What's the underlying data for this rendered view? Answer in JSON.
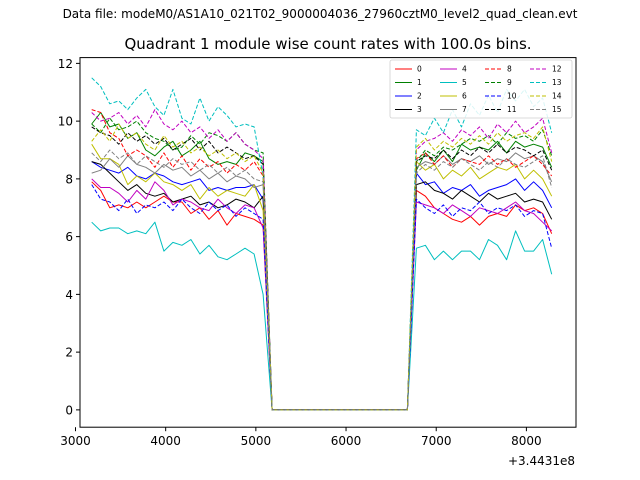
{
  "header": {
    "file_label": "Data file: modeM0/AS1A10_021T02_9000004036_27960cztM0_level2_quad_clean.evt"
  },
  "chart_data": {
    "type": "line",
    "title": "Quadrant 1 module wise count rates with 100.0s bins.",
    "xlabel": "",
    "ylabel": "",
    "x_offset_label": "+3.4431e8",
    "xlim": [
      3050,
      8550
    ],
    "ylim": [
      -0.6,
      12.2
    ],
    "xticks": [
      3000,
      4000,
      5000,
      6000,
      7000,
      8000
    ],
    "yticks": [
      0,
      2,
      4,
      6,
      8,
      10,
      12
    ],
    "grid": false,
    "legend_position": "upper-right",
    "x": [
      3180,
      3280,
      3380,
      3480,
      3580,
      3680,
      3780,
      3880,
      3980,
      4080,
      4180,
      4280,
      4380,
      4480,
      4580,
      4680,
      4780,
      4880,
      4980,
      5080,
      5180,
      5280,
      5380,
      5480,
      5580,
      5680,
      5780,
      5880,
      5980,
      6080,
      6180,
      6280,
      6380,
      6480,
      6580,
      6680,
      6780,
      6880,
      6980,
      7080,
      7180,
      7280,
      7380,
      7480,
      7580,
      7680,
      7780,
      7880,
      7980,
      8080,
      8180,
      8280
    ],
    "series": [
      {
        "name": "0",
        "color": "#ff0000",
        "dash": false,
        "values": [
          7.9,
          7.6,
          7.0,
          7.1,
          7.0,
          7.2,
          7.0,
          7.2,
          7.4,
          7.2,
          7.2,
          6.8,
          7.0,
          6.6,
          6.9,
          6.4,
          6.8,
          6.7,
          6.6,
          6.4,
          0.0,
          0.0,
          0.0,
          0.0,
          0.0,
          0.0,
          0.0,
          0.0,
          0.0,
          0.0,
          0.0,
          0.0,
          0.0,
          0.0,
          0.0,
          0.0,
          7.6,
          7.4,
          7.0,
          6.8,
          6.6,
          6.5,
          6.7,
          6.4,
          6.7,
          6.8,
          6.7,
          7.1,
          6.9,
          7.0,
          6.8,
          6.1
        ]
      },
      {
        "name": "1",
        "color": "#008000",
        "dash": false,
        "values": [
          9.9,
          10.3,
          9.8,
          9.9,
          9.4,
          9.6,
          9.0,
          8.8,
          9.1,
          9.3,
          8.8,
          9.0,
          9.3,
          8.7,
          8.5,
          8.6,
          8.5,
          8.9,
          8.8,
          8.6,
          0.0,
          0.0,
          0.0,
          0.0,
          0.0,
          0.0,
          0.0,
          0.0,
          0.0,
          0.0,
          0.0,
          0.0,
          0.0,
          0.0,
          0.0,
          0.0,
          8.3,
          8.9,
          8.6,
          9.0,
          8.6,
          9.2,
          9.0,
          9.1,
          9.0,
          9.3,
          8.9,
          9.3,
          9.1,
          9.2,
          9.1,
          8.4
        ]
      },
      {
        "name": "2",
        "color": "#0000ff",
        "dash": false,
        "values": [
          8.6,
          8.4,
          8.3,
          8.2,
          8.4,
          8.1,
          8.0,
          8.2,
          8.1,
          7.9,
          7.8,
          7.9,
          8.0,
          7.6,
          7.7,
          7.6,
          7.7,
          7.7,
          7.8,
          7.3,
          0.0,
          0.0,
          0.0,
          0.0,
          0.0,
          0.0,
          0.0,
          0.0,
          0.0,
          0.0,
          0.0,
          0.0,
          0.0,
          0.0,
          0.0,
          0.0,
          8.2,
          7.8,
          7.9,
          7.5,
          7.7,
          7.6,
          7.8,
          7.4,
          7.6,
          7.7,
          7.8,
          8.0,
          7.6,
          7.9,
          7.6,
          7.0
        ]
      },
      {
        "name": "3",
        "color": "#000000",
        "dash": false,
        "values": [
          8.6,
          8.5,
          8.2,
          7.9,
          7.6,
          7.8,
          7.5,
          7.4,
          7.5,
          7.2,
          7.3,
          7.4,
          7.1,
          7.2,
          7.0,
          7.1,
          7.3,
          7.2,
          7.0,
          7.4,
          0.0,
          0.0,
          0.0,
          0.0,
          0.0,
          0.0,
          0.0,
          0.0,
          0.0,
          0.0,
          0.0,
          0.0,
          0.0,
          0.0,
          0.0,
          0.0,
          7.8,
          7.9,
          7.6,
          7.5,
          7.3,
          7.6,
          7.4,
          7.2,
          7.5,
          7.3,
          7.4,
          7.5,
          7.2,
          7.3,
          7.2,
          6.6
        ]
      },
      {
        "name": "4",
        "color": "#c000c0",
        "dash": false,
        "values": [
          8.0,
          7.7,
          7.7,
          7.5,
          7.2,
          7.6,
          7.3,
          7.9,
          7.6,
          7.1,
          7.3,
          7.2,
          7.0,
          6.9,
          7.3,
          7.0,
          6.8,
          7.1,
          7.0,
          6.3,
          0.0,
          0.0,
          0.0,
          0.0,
          0.0,
          0.0,
          0.0,
          0.0,
          0.0,
          0.0,
          0.0,
          0.0,
          0.0,
          0.0,
          0.0,
          0.0,
          7.2,
          7.1,
          7.0,
          6.8,
          7.1,
          6.9,
          6.7,
          7.0,
          6.9,
          6.8,
          7.0,
          7.2,
          6.9,
          6.8,
          6.5,
          6.2
        ]
      },
      {
        "name": "5",
        "color": "#00bfbf",
        "dash": false,
        "values": [
          6.5,
          6.2,
          6.3,
          6.3,
          6.1,
          6.2,
          6.1,
          6.5,
          5.5,
          5.8,
          5.7,
          5.9,
          5.4,
          5.7,
          5.3,
          5.2,
          5.4,
          5.6,
          5.4,
          4.0,
          0.0,
          0.0,
          0.0,
          0.0,
          0.0,
          0.0,
          0.0,
          0.0,
          0.0,
          0.0,
          0.0,
          0.0,
          0.0,
          0.0,
          0.0,
          0.0,
          5.6,
          5.7,
          5.2,
          5.5,
          5.2,
          5.5,
          5.5,
          5.2,
          5.9,
          5.7,
          5.2,
          6.2,
          5.5,
          5.5,
          5.9,
          4.7
        ]
      },
      {
        "name": "6",
        "color": "#bfbf00",
        "dash": false,
        "values": [
          9.2,
          8.7,
          8.7,
          8.5,
          7.8,
          8.1,
          7.9,
          8.2,
          7.9,
          7.8,
          7.6,
          7.8,
          7.3,
          7.7,
          7.4,
          7.6,
          7.5,
          7.4,
          7.8,
          6.9,
          0.0,
          0.0,
          0.0,
          0.0,
          0.0,
          0.0,
          0.0,
          0.0,
          0.0,
          0.0,
          0.0,
          0.0,
          0.0,
          0.0,
          0.0,
          0.0,
          8.6,
          8.3,
          8.5,
          8.0,
          8.3,
          8.1,
          8.4,
          8.0,
          8.2,
          8.4,
          8.3,
          8.5,
          8.0,
          8.3,
          8.0,
          7.4
        ]
      },
      {
        "name": "7",
        "color": "#808080",
        "dash": false,
        "values": [
          8.2,
          8.3,
          8.7,
          8.4,
          8.8,
          8.5,
          8.4,
          8.2,
          8.5,
          8.3,
          8.4,
          8.1,
          8.3,
          8.0,
          8.2,
          7.9,
          8.1,
          8.0,
          7.7,
          7.8,
          0.0,
          0.0,
          0.0,
          0.0,
          0.0,
          0.0,
          0.0,
          0.0,
          0.0,
          0.0,
          0.0,
          0.0,
          0.0,
          0.0,
          0.0,
          0.0,
          8.4,
          8.6,
          8.5,
          8.8,
          8.5,
          8.7,
          8.6,
          8.8,
          8.5,
          8.7,
          8.6,
          8.9,
          8.7,
          8.8,
          8.6,
          7.9
        ]
      },
      {
        "name": "8",
        "color": "#ff0000",
        "dash": true,
        "values": [
          10.4,
          10.3,
          9.6,
          9.4,
          8.8,
          9.0,
          8.8,
          8.4,
          8.9,
          8.4,
          8.8,
          8.3,
          8.7,
          8.4,
          8.6,
          8.2,
          8.5,
          8.3,
          8.6,
          8.1,
          0.0,
          0.0,
          0.0,
          0.0,
          0.0,
          0.0,
          0.0,
          0.0,
          0.0,
          0.0,
          0.0,
          0.0,
          0.0,
          0.0,
          0.0,
          0.0,
          8.7,
          8.9,
          8.5,
          8.8,
          8.4,
          8.7,
          8.6,
          8.5,
          8.8,
          8.5,
          8.7,
          8.4,
          8.6,
          8.8,
          8.5,
          8.1
        ]
      },
      {
        "name": "9",
        "color": "#008000",
        "dash": true,
        "values": [
          9.9,
          9.6,
          10.1,
          9.7,
          9.8,
          10.0,
          9.6,
          9.4,
          9.3,
          9.0,
          9.1,
          9.5,
          9.2,
          9.6,
          9.5,
          9.3,
          9.6,
          9.2,
          9.0,
          8.9,
          0.0,
          0.0,
          0.0,
          0.0,
          0.0,
          0.0,
          0.0,
          0.0,
          0.0,
          0.0,
          0.0,
          0.0,
          0.0,
          0.0,
          0.0,
          0.0,
          8.6,
          9.0,
          8.8,
          9.1,
          9.0,
          9.2,
          9.4,
          9.3,
          9.5,
          9.2,
          9.6,
          9.4,
          9.5,
          9.3,
          9.7,
          8.8
        ]
      },
      {
        "name": "10",
        "color": "#0000ff",
        "dash": true,
        "values": [
          7.8,
          7.3,
          7.2,
          6.9,
          7.3,
          6.8,
          7.1,
          7.0,
          7.2,
          6.9,
          7.3,
          7.0,
          6.8,
          7.2,
          6.9,
          7.1,
          6.7,
          7.0,
          6.8,
          6.6,
          0.0,
          0.0,
          0.0,
          0.0,
          0.0,
          0.0,
          0.0,
          0.0,
          0.0,
          0.0,
          0.0,
          0.0,
          0.0,
          0.0,
          0.0,
          0.0,
          7.3,
          7.0,
          6.8,
          7.1,
          6.7,
          7.0,
          6.9,
          7.2,
          6.8,
          7.0,
          6.9,
          7.1,
          6.7,
          6.9,
          6.8,
          5.6
        ]
      },
      {
        "name": "11",
        "color": "#000000",
        "dash": true,
        "values": [
          9.8,
          9.6,
          9.5,
          9.2,
          9.6,
          9.3,
          9.5,
          9.2,
          9.4,
          9.0,
          9.2,
          9.4,
          9.0,
          9.3,
          8.9,
          9.1,
          8.9,
          8.7,
          8.8,
          8.5,
          0.0,
          0.0,
          0.0,
          0.0,
          0.0,
          0.0,
          0.0,
          0.0,
          0.0,
          0.0,
          0.0,
          0.0,
          0.0,
          0.0,
          0.0,
          0.0,
          8.6,
          8.8,
          8.7,
          9.0,
          8.7,
          9.0,
          8.8,
          9.1,
          8.9,
          9.2,
          8.9,
          9.1,
          9.0,
          8.8,
          9.0,
          8.3
        ]
      },
      {
        "name": "12",
        "color": "#c000c0",
        "dash": true,
        "values": [
          10.3,
          10.0,
          10.1,
          10.3,
          9.9,
          10.2,
          9.8,
          10.4,
          9.9,
          9.7,
          10.0,
          9.6,
          9.8,
          9.4,
          9.7,
          9.3,
          9.6,
          9.2,
          9.0,
          8.7,
          0.0,
          0.0,
          0.0,
          0.0,
          0.0,
          0.0,
          0.0,
          0.0,
          0.0,
          0.0,
          0.0,
          0.0,
          0.0,
          0.0,
          0.0,
          0.0,
          9.0,
          9.3,
          9.4,
          9.6,
          9.3,
          9.7,
          9.5,
          9.8,
          9.4,
          9.9,
          9.6,
          10.0,
          9.6,
          9.8,
          10.1,
          8.9
        ]
      },
      {
        "name": "13",
        "color": "#00bfbf",
        "dash": true,
        "values": [
          11.5,
          11.2,
          10.6,
          10.7,
          10.4,
          10.8,
          11.1,
          10.5,
          10.2,
          11.1,
          10.1,
          9.9,
          10.8,
          10.0,
          10.5,
          10.2,
          9.8,
          9.9,
          9.8,
          8.1,
          0.0,
          0.0,
          0.0,
          0.0,
          0.0,
          0.0,
          0.0,
          0.0,
          0.0,
          0.0,
          0.0,
          0.0,
          0.0,
          0.0,
          0.0,
          0.0,
          9.7,
          9.5,
          10.1,
          9.6,
          10.4,
          9.8,
          10.6,
          10.2,
          10.9,
          10.3,
          11.1,
          10.7,
          11.1,
          10.5,
          10.8,
          9.6
        ]
      },
      {
        "name": "14",
        "color": "#bfbf00",
        "dash": true,
        "values": [
          9.3,
          9.7,
          9.3,
          9.9,
          9.4,
          9.6,
          9.2,
          9.0,
          9.5,
          9.1,
          9.3,
          8.9,
          9.1,
          8.8,
          9.0,
          8.7,
          8.9,
          8.6,
          8.8,
          8.2,
          0.0,
          0.0,
          0.0,
          0.0,
          0.0,
          0.0,
          0.0,
          0.0,
          0.0,
          0.0,
          0.0,
          0.0,
          0.0,
          0.0,
          0.0,
          0.0,
          9.1,
          9.4,
          9.0,
          9.3,
          9.1,
          9.4,
          9.2,
          9.5,
          9.2,
          9.6,
          9.3,
          9.5,
          9.6,
          9.4,
          9.8,
          8.6
        ]
      },
      {
        "name": "15",
        "color": "#808080",
        "dash": true,
        "values": [
          8.9,
          8.6,
          9.0,
          8.7,
          8.9,
          8.5,
          8.8,
          8.6,
          8.4,
          8.7,
          8.5,
          8.6,
          8.3,
          8.5,
          8.2,
          8.4,
          8.1,
          8.3,
          8.0,
          7.9,
          0.0,
          0.0,
          0.0,
          0.0,
          0.0,
          0.0,
          0.0,
          0.0,
          0.0,
          0.0,
          0.0,
          0.0,
          0.0,
          0.0,
          0.0,
          0.0,
          8.2,
          8.5,
          8.3,
          8.6,
          8.4,
          8.7,
          8.5,
          8.3,
          8.6,
          8.4,
          8.7,
          8.5,
          8.4,
          8.6,
          8.8,
          7.7
        ]
      }
    ]
  }
}
